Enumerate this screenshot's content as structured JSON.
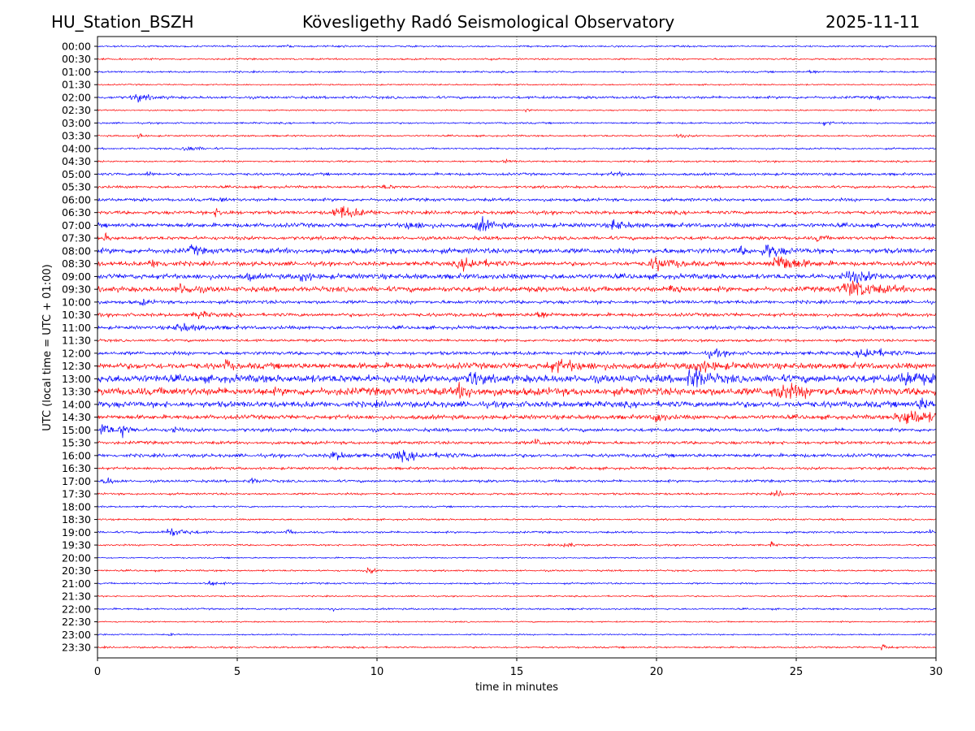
{
  "header": {
    "station": "HU_Station_BSZH",
    "observatory": "Kövesligethy Radó Seismological Observatory",
    "date": "2025-11-11"
  },
  "chart_data": {
    "type": "line",
    "title": "Kövesligethy Radó Seismological Observatory",
    "xlabel": "time in minutes",
    "ylabel": "UTC (local time = UTC + 01:00)",
    "xlim": [
      0,
      30
    ],
    "xticks": [
      "0",
      "5",
      "10",
      "15",
      "20",
      "25",
      "30"
    ],
    "grid": "vertical dotted at each x tick",
    "colors": [
      "#0000ff",
      "#ff0000"
    ],
    "rows": [
      {
        "label": "00:00",
        "noise": 1.0,
        "events": [
          [
            8.8,
            3,
            0.1
          ],
          [
            6.8,
            2,
            0.1
          ]
        ]
      },
      {
        "label": "00:30",
        "noise": 1.0,
        "events": [
          [
            13.9,
            2,
            0.2
          ]
        ]
      },
      {
        "label": "01:00",
        "noise": 1.0,
        "events": [
          [
            25.5,
            2,
            0.5
          ]
        ]
      },
      {
        "label": "01:30",
        "noise": 0.8,
        "events": []
      },
      {
        "label": "02:00",
        "noise": 1.5,
        "events": [
          [
            1.4,
            4,
            1.0
          ],
          [
            27.9,
            3,
            0.2
          ]
        ]
      },
      {
        "label": "02:30",
        "noise": 0.8,
        "events": [
          [
            15.3,
            2,
            0.3
          ]
        ]
      },
      {
        "label": "03:00",
        "noise": 1.0,
        "events": [
          [
            26.0,
            2,
            0.6
          ]
        ]
      },
      {
        "label": "03:30",
        "noise": 1.0,
        "events": [
          [
            1.5,
            5,
            0.2
          ],
          [
            20.8,
            2,
            0.5
          ]
        ]
      },
      {
        "label": "04:00",
        "noise": 1.0,
        "events": [
          [
            3.2,
            3,
            1.0
          ]
        ]
      },
      {
        "label": "04:30",
        "noise": 1.0,
        "events": [
          [
            14.6,
            2,
            0.4
          ]
        ]
      },
      {
        "label": "05:00",
        "noise": 1.5,
        "events": [
          [
            18.5,
            3,
            0.6
          ],
          [
            1.8,
            3,
            0.4
          ]
        ]
      },
      {
        "label": "05:30",
        "noise": 1.5,
        "events": [
          [
            10.3,
            2,
            0.6
          ]
        ]
      },
      {
        "label": "06:00",
        "noise": 1.8,
        "events": [
          [
            4.4,
            3,
            0.4
          ]
        ]
      },
      {
        "label": "06:30",
        "noise": 2.0,
        "events": [
          [
            8.7,
            7,
            1.5
          ],
          [
            4.3,
            4,
            0.8
          ]
        ]
      },
      {
        "label": "07:00",
        "noise": 2.5,
        "events": [
          [
            13.7,
            7,
            1.0
          ],
          [
            18.5,
            6,
            0.8
          ],
          [
            11.2,
            4,
            1.0
          ]
        ]
      },
      {
        "label": "07:30",
        "noise": 2.0,
        "events": [
          [
            0.3,
            4,
            0.4
          ],
          [
            25.8,
            4,
            0.4
          ]
        ]
      },
      {
        "label": "08:00",
        "noise": 3.0,
        "events": [
          [
            3.4,
            6,
            0.5
          ],
          [
            24.0,
            7,
            1.0
          ],
          [
            23.0,
            5,
            0.3
          ]
        ]
      },
      {
        "label": "08:30",
        "noise": 2.5,
        "events": [
          [
            13.2,
            6,
            1.5
          ],
          [
            20.0,
            6,
            1.5
          ],
          [
            24.4,
            10,
            1.5
          ],
          [
            2.0,
            4,
            1.0
          ]
        ]
      },
      {
        "label": "09:00",
        "noise": 3.0,
        "events": [
          [
            7.3,
            7,
            0.5
          ],
          [
            5.4,
            5,
            0.3
          ],
          [
            27.0,
            5,
            2.0
          ]
        ]
      },
      {
        "label": "09:30",
        "noise": 3.0,
        "events": [
          [
            27.0,
            9,
            2.0
          ],
          [
            20.6,
            8,
            0.5
          ],
          [
            3.0,
            5,
            1.0
          ]
        ]
      },
      {
        "label": "10:00",
        "noise": 2.0,
        "events": [
          [
            1.6,
            3,
            0.5
          ]
        ]
      },
      {
        "label": "10:30",
        "noise": 2.0,
        "events": [
          [
            3.6,
            4,
            0.8
          ],
          [
            15.8,
            5,
            0.6
          ]
        ]
      },
      {
        "label": "11:00",
        "noise": 2.0,
        "events": [
          [
            3.0,
            4,
            1.5
          ]
        ]
      },
      {
        "label": "11:30",
        "noise": 1.5,
        "events": [
          [
            21.5,
            2,
            0.6
          ]
        ]
      },
      {
        "label": "12:00",
        "noise": 2.0,
        "events": [
          [
            27.5,
            6,
            1.5
          ],
          [
            22.0,
            4,
            1.0
          ]
        ]
      },
      {
        "label": "12:30",
        "noise": 3.5,
        "events": [
          [
            4.6,
            7,
            0.3
          ],
          [
            16.5,
            5,
            2.0
          ],
          [
            21.5,
            5,
            1.5
          ]
        ]
      },
      {
        "label": "13:00",
        "noise": 4.5,
        "events": [
          [
            21.3,
            12,
            1.0
          ],
          [
            13.4,
            10,
            0.5
          ],
          [
            29.0,
            6,
            1.5
          ]
        ]
      },
      {
        "label": "13:30",
        "noise": 4.5,
        "events": [
          [
            13.0,
            6,
            1.0
          ],
          [
            24.5,
            6,
            2.0
          ]
        ]
      },
      {
        "label": "14:00",
        "noise": 3.5,
        "events": [
          [
            29.5,
            5,
            1.0
          ]
        ]
      },
      {
        "label": "14:30",
        "noise": 2.5,
        "events": [
          [
            29.0,
            9,
            2.0
          ],
          [
            20.0,
            6,
            0.6
          ]
        ]
      },
      {
        "label": "15:00",
        "noise": 2.0,
        "events": [
          [
            0.2,
            10,
            0.5
          ],
          [
            0.9,
            8,
            0.5
          ],
          [
            2.7,
            5,
            0.4
          ]
        ]
      },
      {
        "label": "15:30",
        "noise": 1.8,
        "events": [
          [
            15.7,
            4,
            0.6
          ],
          [
            17.6,
            3,
            0.3
          ]
        ]
      },
      {
        "label": "16:00",
        "noise": 2.0,
        "events": [
          [
            10.9,
            4,
            2.5
          ],
          [
            8.5,
            4,
            1.0
          ]
        ]
      },
      {
        "label": "16:30",
        "noise": 1.5,
        "events": []
      },
      {
        "label": "17:00",
        "noise": 1.5,
        "events": [
          [
            0.3,
            5,
            0.5
          ],
          [
            5.5,
            3,
            0.6
          ]
        ]
      },
      {
        "label": "17:30",
        "noise": 1.2,
        "events": [
          [
            24.3,
            3,
            0.6
          ]
        ]
      },
      {
        "label": "18:00",
        "noise": 1.0,
        "events": []
      },
      {
        "label": "18:30",
        "noise": 1.0,
        "events": []
      },
      {
        "label": "19:00",
        "noise": 1.2,
        "events": [
          [
            2.6,
            5,
            1.2
          ],
          [
            6.8,
            4,
            0.3
          ],
          [
            29.8,
            3,
            0.2
          ]
        ]
      },
      {
        "label": "19:30",
        "noise": 1.0,
        "events": [
          [
            16.7,
            4,
            0.6
          ],
          [
            24.1,
            3,
            0.3
          ]
        ]
      },
      {
        "label": "20:00",
        "noise": 0.8,
        "events": []
      },
      {
        "label": "20:30",
        "noise": 1.0,
        "events": [
          [
            9.7,
            4,
            0.4
          ]
        ]
      },
      {
        "label": "21:00",
        "noise": 1.0,
        "events": [
          [
            4.0,
            3,
            0.6
          ]
        ]
      },
      {
        "label": "21:30",
        "noise": 0.8,
        "events": [
          [
            19.8,
            2,
            0.2
          ]
        ]
      },
      {
        "label": "22:00",
        "noise": 1.0,
        "events": [
          [
            8.3,
            3,
            0.3
          ],
          [
            29.8,
            3,
            0.2
          ]
        ]
      },
      {
        "label": "22:30",
        "noise": 0.8,
        "events": []
      },
      {
        "label": "23:00",
        "noise": 0.8,
        "events": [
          [
            2.6,
            2,
            0.2
          ]
        ]
      },
      {
        "label": "23:30",
        "noise": 1.0,
        "events": [
          [
            28.1,
            4,
            0.4
          ]
        ]
      }
    ]
  }
}
